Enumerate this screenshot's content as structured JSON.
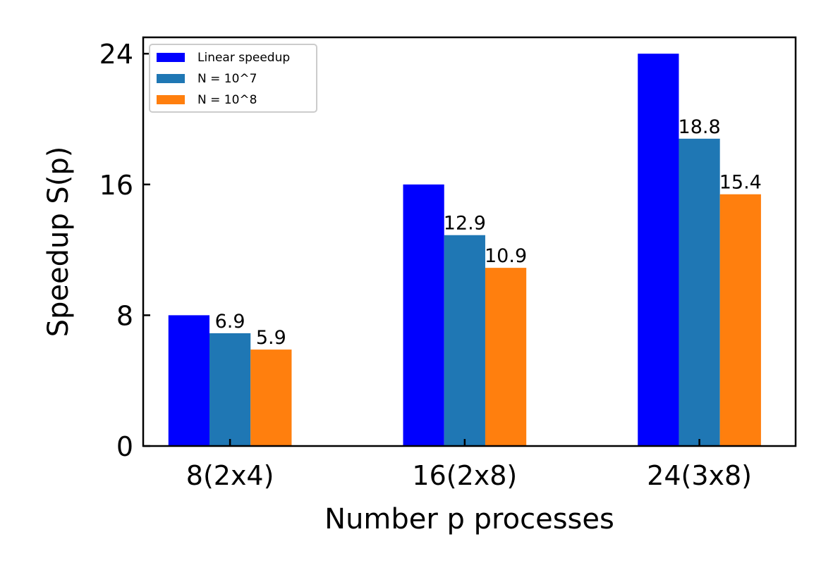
{
  "chart_data": {
    "type": "bar",
    "title": "",
    "xlabel": "Number p processes",
    "ylabel": "Speedup S(p)",
    "categories": [
      "8(2x4)",
      "16(2x8)",
      "24(3x8)"
    ],
    "ylim": [
      0,
      25
    ],
    "yticks": [
      0,
      8,
      16,
      24
    ],
    "yticks_labels": [
      "0",
      "8",
      "16",
      "24"
    ],
    "grid": false,
    "legend_position": "top-left",
    "series": [
      {
        "name": "Linear speedup",
        "values": [
          8,
          16,
          24
        ],
        "color": "#0000ff",
        "labels": [
          "",
          "",
          ""
        ]
      },
      {
        "name": "N = 10^7",
        "values": [
          6.9,
          12.9,
          18.8
        ],
        "color": "#1f77b4",
        "labels": [
          "6.9",
          "12.9",
          "18.8"
        ]
      },
      {
        "name": "N = 10^8",
        "values": [
          5.9,
          10.9,
          15.4
        ],
        "color": "#ff7f0e",
        "labels": [
          "5.9",
          "10.9",
          "15.4"
        ]
      }
    ]
  }
}
